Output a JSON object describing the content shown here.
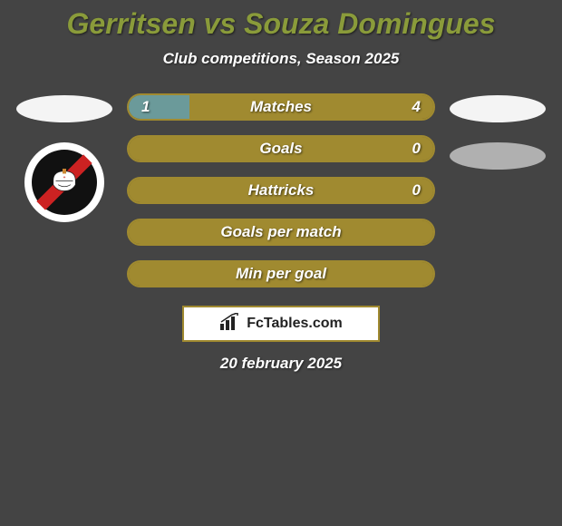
{
  "title": {
    "text": "Gerritsen vs Souza Domingues",
    "color": "#8a9b3a",
    "fontsize": 32
  },
  "subtitle": {
    "text": "Club competitions, Season 2025",
    "fontsize": 17
  },
  "colors": {
    "bar_border": "#a08a30",
    "bar_bg": "#6b5e21",
    "fill_left": "#6b9a9a",
    "fill_right": "#a08a30",
    "ellipse_left": "#f4f4f4",
    "ellipse_right_top": "#f4f4f4",
    "ellipse_right_bottom": "#b0b0b0",
    "background": "#444444"
  },
  "stats": [
    {
      "label": "Matches",
      "left_val": "1",
      "right_val": "4",
      "left_pct": 20,
      "right_pct": 80,
      "show_vals": true
    },
    {
      "label": "Goals",
      "left_val": "",
      "right_val": "0",
      "left_pct": 0,
      "right_pct": 100,
      "show_vals": true
    },
    {
      "label": "Hattricks",
      "left_val": "",
      "right_val": "0",
      "left_pct": 0,
      "right_pct": 100,
      "show_vals": true
    },
    {
      "label": "Goals per match",
      "left_val": "",
      "right_val": "",
      "left_pct": 0,
      "right_pct": 100,
      "show_vals": false
    },
    {
      "label": "Min per goal",
      "left_val": "",
      "right_val": "",
      "left_pct": 0,
      "right_pct": 100,
      "show_vals": false
    }
  ],
  "stat_fontsize": 17,
  "val_fontsize": 17,
  "footer": {
    "brand": "FcTables.com",
    "date": "20 february 2025",
    "date_fontsize": 17
  }
}
